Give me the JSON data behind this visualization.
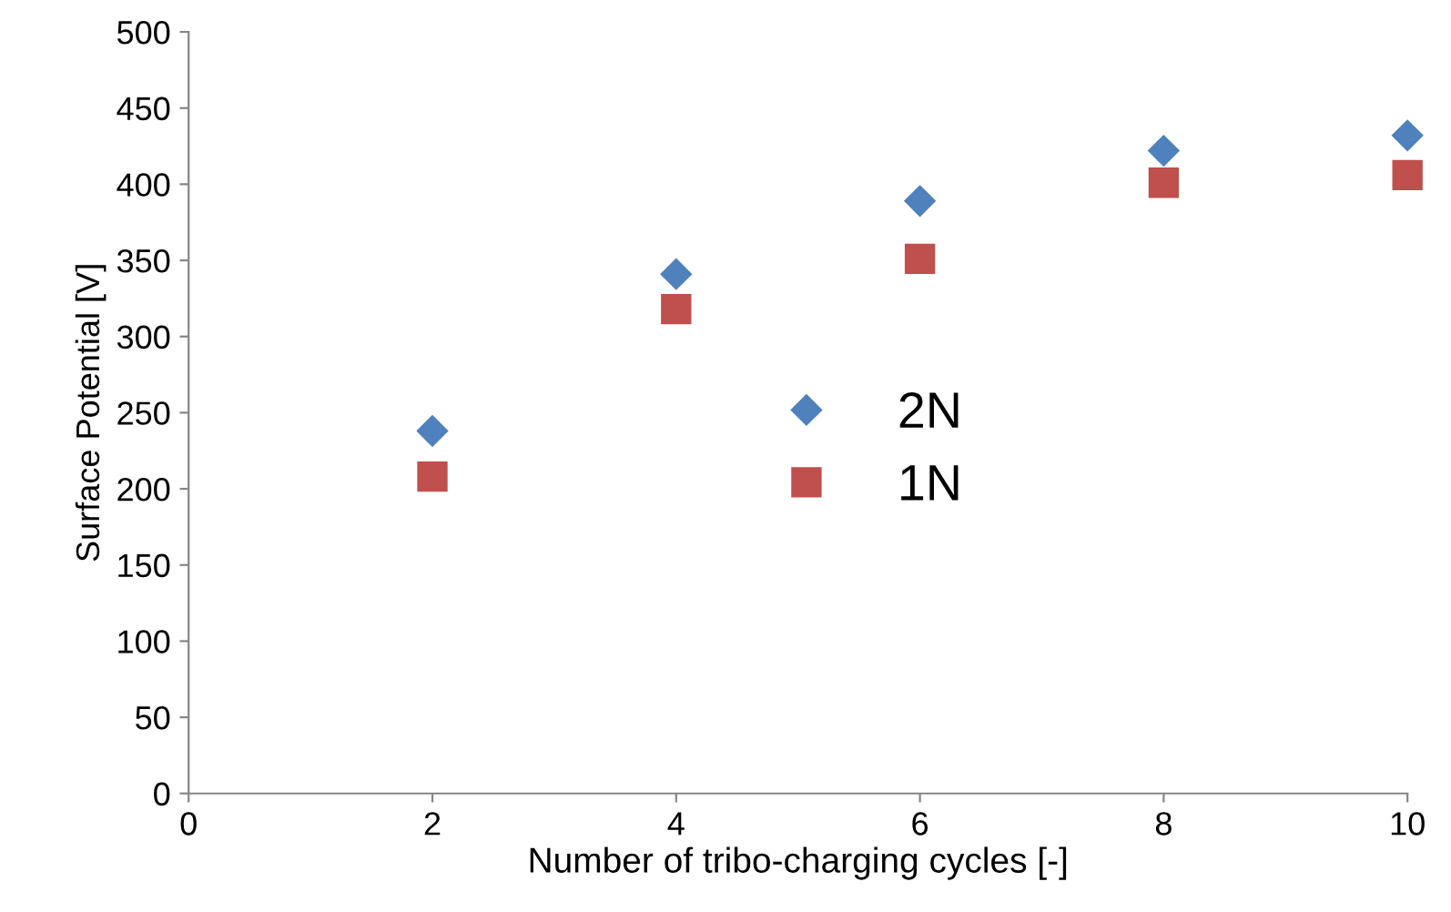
{
  "chart_data": {
    "type": "scatter",
    "xlabel": "Number of tribo-charging cycles [-]",
    "ylabel": "Surface Potential [V]",
    "x": [
      2,
      4,
      6,
      8,
      10
    ],
    "series": [
      {
        "name": "2N",
        "color": "#4f81bd",
        "marker": "diamond",
        "values": [
          238,
          341,
          389,
          422,
          432
        ]
      },
      {
        "name": "1N",
        "color": "#c0504d",
        "marker": "square",
        "values": [
          208,
          318,
          351,
          401,
          406
        ]
      }
    ],
    "xlim": [
      0,
      10
    ],
    "xticks": [
      0,
      2,
      4,
      6,
      8,
      10
    ],
    "ylim": [
      0,
      500
    ],
    "yticks": [
      0,
      50,
      100,
      150,
      200,
      250,
      300,
      350,
      400,
      450,
      500
    ],
    "grid": false,
    "legend": "center"
  }
}
